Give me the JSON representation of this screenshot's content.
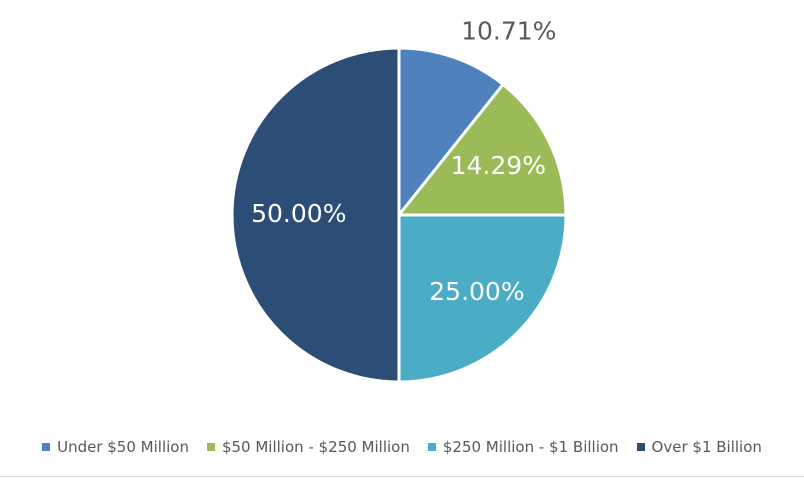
{
  "chart_data": {
    "type": "pie",
    "title": "",
    "start_angle_deg": 0,
    "direction": "clockwise",
    "legend_position": "bottom",
    "slices": [
      {
        "label": "Under $50 Million",
        "value": 10.71,
        "data_label": "10.71%",
        "color": "#4f81bd",
        "label_color": "#595959",
        "label_placement": "outside"
      },
      {
        "label": "$50 Million - $250 Million",
        "value": 14.29,
        "data_label": "14.29%",
        "color": "#9bbb59",
        "label_color": "#ffffff",
        "label_placement": "inside"
      },
      {
        "label": "$250 Million - $1 Billion",
        "value": 25.0,
        "data_label": "25.00%",
        "color": "#4bacc6",
        "label_color": "#ffffff",
        "label_placement": "inside"
      },
      {
        "label": "Over $1 Billion",
        "value": 50.0,
        "data_label": "50.00%",
        "color": "#2c4d75",
        "label_color": "#ffffff",
        "label_placement": "inside"
      }
    ]
  }
}
